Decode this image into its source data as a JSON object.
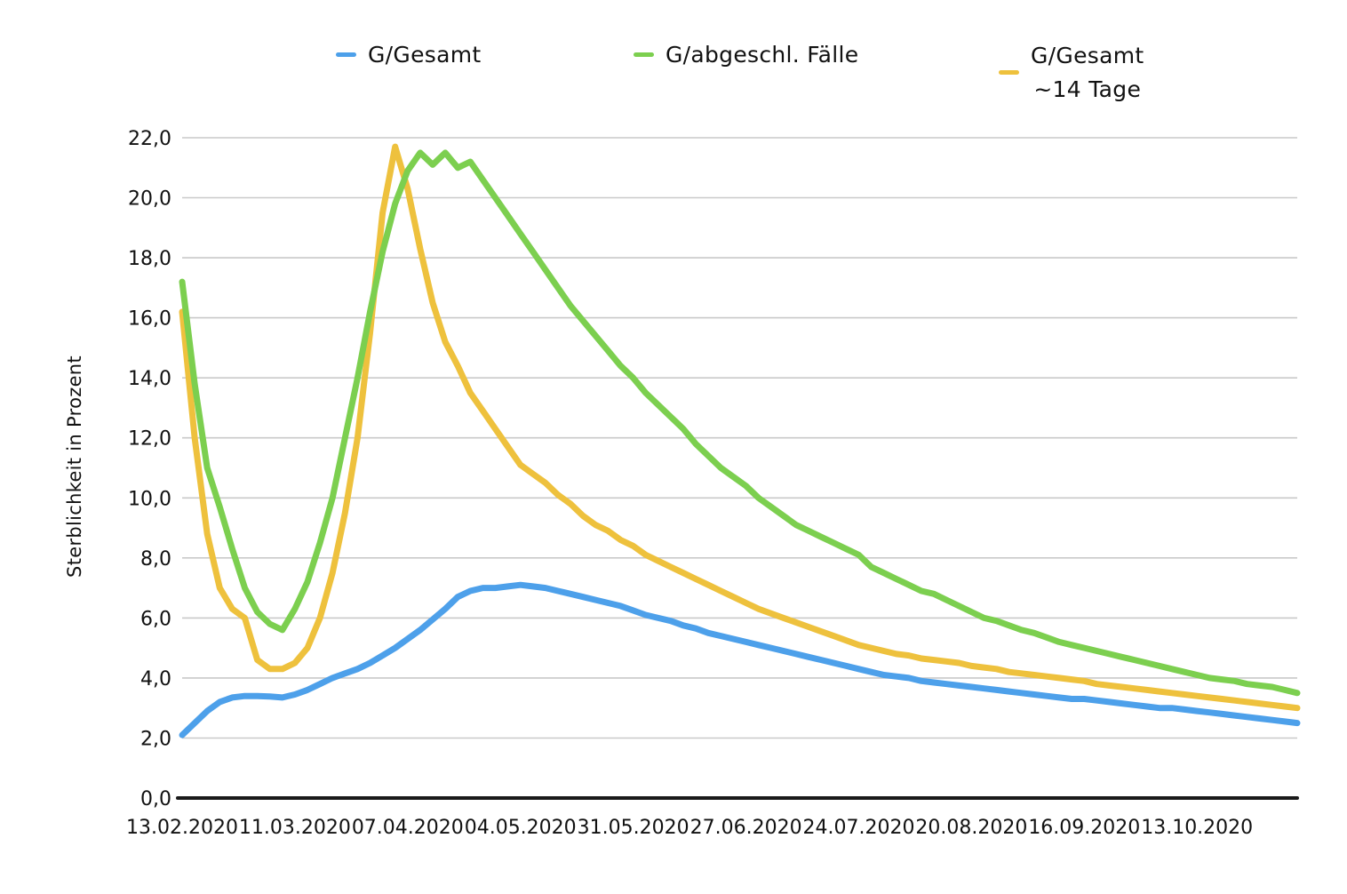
{
  "figure": {
    "background": "#ffffff"
  },
  "legend": {
    "items": [
      {
        "label": "G/Gesamt",
        "color": "#4da0ea"
      },
      {
        "label": "G/abgeschl. Fälle",
        "color": "#7ccf4f"
      },
      {
        "label": "G/Gesamt",
        "label2": "~14 Tage",
        "color": "#eec13d"
      }
    ]
  },
  "axes": {
    "y_title": "Sterblichkeit in Prozent"
  },
  "chart_data": {
    "type": "line",
    "title": "",
    "xlabel": "",
    "ylabel": "Sterblichkeit in Prozent",
    "x_unit": "days since 13.02.2020",
    "sample_step_days": 3,
    "xlim_days": [
      0,
      267
    ],
    "ylim": [
      0,
      22
    ],
    "grid": "horizontal",
    "grid_color": "#c9c9c9",
    "axis_color": "#1a1a1a",
    "legend_position": "top",
    "x_tick_days": [
      0,
      27,
      54,
      81,
      108,
      135,
      162,
      189,
      216,
      243
    ],
    "x_tick_labels": [
      "13.02.2020",
      "11.03.2020",
      "07.04.2020",
      "04.05.2020",
      "31.05.2020",
      "27.06.2020",
      "24.07.2020",
      "20.08.2020",
      "16.09.2020",
      "13.10.2020"
    ],
    "y_ticks": [
      0,
      2,
      4,
      6,
      8,
      10,
      12,
      14,
      16,
      18,
      20,
      22
    ],
    "y_tick_labels": [
      "0,0",
      "2,0",
      "4,0",
      "6,0",
      "8,0",
      "10,0",
      "12,0",
      "14,0",
      "16,0",
      "18,0",
      "20,0",
      "22,0"
    ],
    "series": [
      {
        "name": "G/Gesamt",
        "color": "#4da0ea",
        "values": [
          2.1,
          2.5,
          2.9,
          3.2,
          3.35,
          3.4,
          3.4,
          3.38,
          3.35,
          3.45,
          3.6,
          3.8,
          4.0,
          4.15,
          4.3,
          4.5,
          4.75,
          5.0,
          5.3,
          5.6,
          5.95,
          6.3,
          6.7,
          6.9,
          7.0,
          7.0,
          7.05,
          7.1,
          7.05,
          7.0,
          6.9,
          6.8,
          6.7,
          6.6,
          6.5,
          6.4,
          6.25,
          6.1,
          6.0,
          5.9,
          5.75,
          5.65,
          5.5,
          5.4,
          5.3,
          5.2,
          5.1,
          5.0,
          4.9,
          4.8,
          4.7,
          4.6,
          4.5,
          4.4,
          4.3,
          4.2,
          4.1,
          4.05,
          4.0,
          3.9,
          3.85,
          3.8,
          3.75,
          3.7,
          3.65,
          3.6,
          3.55,
          3.5,
          3.45,
          3.4,
          3.35,
          3.3,
          3.3,
          3.25,
          3.2,
          3.15,
          3.1,
          3.05,
          3.0,
          3.0,
          2.95,
          2.9,
          2.85,
          2.8,
          2.75,
          2.7,
          2.65,
          2.6,
          2.55,
          2.5
        ]
      },
      {
        "name": "G/abgeschl. Fälle",
        "color": "#7ccf4f",
        "values": [
          17.2,
          13.8,
          11.0,
          9.7,
          8.3,
          7.0,
          6.2,
          5.8,
          5.6,
          6.3,
          7.2,
          8.5,
          10.0,
          12.0,
          14.0,
          16.2,
          18.2,
          19.8,
          20.9,
          21.5,
          21.1,
          21.5,
          21.0,
          21.2,
          20.6,
          20.0,
          19.4,
          18.8,
          18.2,
          17.6,
          17.0,
          16.4,
          15.9,
          15.4,
          14.9,
          14.4,
          14.0,
          13.5,
          13.1,
          12.7,
          12.3,
          11.8,
          11.4,
          11.0,
          10.7,
          10.4,
          10.0,
          9.7,
          9.4,
          9.1,
          8.9,
          8.7,
          8.5,
          8.3,
          8.1,
          7.7,
          7.5,
          7.3,
          7.1,
          6.9,
          6.8,
          6.6,
          6.4,
          6.2,
          6.0,
          5.9,
          5.75,
          5.6,
          5.5,
          5.35,
          5.2,
          5.1,
          5.0,
          4.9,
          4.8,
          4.7,
          4.6,
          4.5,
          4.4,
          4.3,
          4.2,
          4.1,
          4.0,
          3.95,
          3.9,
          3.8,
          3.75,
          3.7,
          3.6,
          3.5
        ]
      },
      {
        "name": "G/Gesamt ~14 Tage",
        "color": "#eec13d",
        "values": [
          16.2,
          12.0,
          8.8,
          7.0,
          6.3,
          6.0,
          4.6,
          4.3,
          4.3,
          4.5,
          5.0,
          6.0,
          7.5,
          9.5,
          12.0,
          15.5,
          19.5,
          21.7,
          20.3,
          18.3,
          16.5,
          15.2,
          14.4,
          13.5,
          12.9,
          12.3,
          11.7,
          11.1,
          10.8,
          10.5,
          10.1,
          9.8,
          9.4,
          9.1,
          8.9,
          8.6,
          8.4,
          8.1,
          7.9,
          7.7,
          7.5,
          7.3,
          7.1,
          6.9,
          6.7,
          6.5,
          6.3,
          6.15,
          6.0,
          5.85,
          5.7,
          5.55,
          5.4,
          5.25,
          5.1,
          5.0,
          4.9,
          4.8,
          4.75,
          4.65,
          4.6,
          4.55,
          4.5,
          4.4,
          4.35,
          4.3,
          4.2,
          4.15,
          4.1,
          4.05,
          4.0,
          3.95,
          3.9,
          3.8,
          3.75,
          3.7,
          3.65,
          3.6,
          3.55,
          3.5,
          3.45,
          3.4,
          3.35,
          3.3,
          3.25,
          3.2,
          3.15,
          3.1,
          3.05,
          3.0
        ]
      }
    ]
  }
}
